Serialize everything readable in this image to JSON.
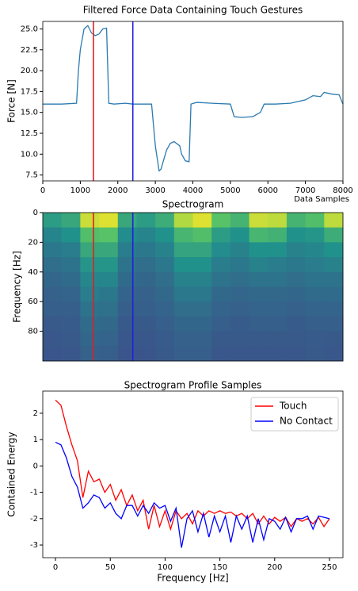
{
  "chart_data": [
    {
      "type": "line",
      "title": "Filtered Force Data Containing Touch Gestures",
      "xlabel": "Data Samples",
      "ylabel": "Force [N]",
      "x": [
        0,
        500,
        900,
        950,
        1000,
        1100,
        1200,
        1300,
        1400,
        1500,
        1600,
        1700,
        1760,
        1900,
        2200,
        2400,
        2900,
        3000,
        3100,
        3150,
        3300,
        3400,
        3500,
        3650,
        3700,
        3800,
        3900,
        3950,
        4100,
        4500,
        5000,
        5100,
        5300,
        5600,
        5800,
        5900,
        6200,
        6600,
        7000,
        7200,
        7400,
        7500,
        7700,
        7900,
        8000
      ],
      "series": [
        {
          "color": "#2a7ab0",
          "values": [
            16,
            16,
            16.1,
            20,
            22.5,
            25,
            25.4,
            24.5,
            24.2,
            24.4,
            25,
            25.1,
            16.1,
            16,
            16.1,
            16,
            16,
            11,
            8,
            8.2,
            10.5,
            11.3,
            11.5,
            11,
            10,
            9.2,
            9.1,
            16,
            16.2,
            16.1,
            16,
            14.5,
            14.4,
            14.5,
            15,
            16,
            16,
            16.1,
            16.5,
            17,
            16.9,
            17.4,
            17.2,
            17.1,
            16
          ]
        }
      ],
      "vlines": [
        {
          "x": 1350,
          "color": "#e02020"
        },
        {
          "x": 2400,
          "color": "#2020e0"
        }
      ],
      "xlim": [
        0,
        8000
      ],
      "xticks": [
        0,
        1000,
        2000,
        3000,
        4000,
        5000,
        6000,
        7000,
        8000
      ],
      "ylim": [
        6.8,
        25.9
      ],
      "yticks": [
        {
          "value": 7.5,
          "label": "7.5"
        },
        {
          "value": 10,
          "label": "10.0"
        },
        {
          "value": 12.5,
          "label": "12.5"
        },
        {
          "value": 15,
          "label": "15.0"
        },
        {
          "value": 17.5,
          "label": "17.5"
        },
        {
          "value": 20,
          "label": "20.0"
        },
        {
          "value": 22.5,
          "label": "22.5"
        },
        {
          "value": 25,
          "label": "25.0"
        }
      ]
    },
    {
      "type": "heatmap",
      "title": "Spectrogram",
      "ylabel": "Frequency [Hz]",
      "xlim": [
        0,
        8000
      ],
      "ylim": [
        0,
        100
      ],
      "yticks": [
        0,
        20,
        40,
        60,
        80
      ],
      "y_inverted": true,
      "vlines": [
        {
          "x": 1350,
          "color": "#e02020"
        },
        {
          "x": 2400,
          "color": "#2020e0"
        }
      ],
      "z": [
        [
          0.55,
          0.6,
          0.92,
          0.95,
          0.6,
          0.55,
          0.62,
          0.88,
          0.95,
          0.72,
          0.65,
          0.92,
          0.9,
          0.65,
          0.7,
          0.9
        ],
        [
          0.45,
          0.5,
          0.7,
          0.72,
          0.48,
          0.45,
          0.5,
          0.66,
          0.7,
          0.55,
          0.5,
          0.66,
          0.64,
          0.5,
          0.52,
          0.62
        ],
        [
          0.4,
          0.42,
          0.6,
          0.6,
          0.42,
          0.4,
          0.44,
          0.58,
          0.58,
          0.48,
          0.44,
          0.5,
          0.5,
          0.44,
          0.46,
          0.5
        ],
        [
          0.36,
          0.38,
          0.52,
          0.52,
          0.38,
          0.36,
          0.4,
          0.5,
          0.5,
          0.42,
          0.4,
          0.44,
          0.42,
          0.4,
          0.42,
          0.44
        ],
        [
          0.33,
          0.35,
          0.46,
          0.46,
          0.35,
          0.33,
          0.36,
          0.44,
          0.44,
          0.38,
          0.36,
          0.38,
          0.38,
          0.36,
          0.38,
          0.38
        ],
        [
          0.31,
          0.32,
          0.42,
          0.4,
          0.32,
          0.31,
          0.34,
          0.4,
          0.4,
          0.34,
          0.33,
          0.34,
          0.34,
          0.33,
          0.35,
          0.35
        ],
        [
          0.3,
          0.3,
          0.38,
          0.37,
          0.3,
          0.3,
          0.32,
          0.36,
          0.36,
          0.32,
          0.31,
          0.32,
          0.32,
          0.31,
          0.32,
          0.32
        ],
        [
          0.28,
          0.29,
          0.35,
          0.34,
          0.28,
          0.28,
          0.3,
          0.33,
          0.33,
          0.3,
          0.29,
          0.3,
          0.3,
          0.29,
          0.3,
          0.3
        ],
        [
          0.27,
          0.28,
          0.33,
          0.32,
          0.27,
          0.27,
          0.29,
          0.31,
          0.31,
          0.28,
          0.28,
          0.28,
          0.28,
          0.28,
          0.29,
          0.28
        ],
        [
          0.26,
          0.27,
          0.31,
          0.3,
          0.26,
          0.26,
          0.28,
          0.3,
          0.3,
          0.27,
          0.27,
          0.27,
          0.27,
          0.27,
          0.28,
          0.27
        ]
      ]
    },
    {
      "type": "line",
      "title": "Spectrogram Profile Samples",
      "xlabel": "Frequency [Hz]",
      "ylabel": "Contained Energy",
      "legend": "upper right",
      "x": [
        0,
        5,
        10,
        15,
        20,
        25,
        30,
        35,
        40,
        45,
        50,
        55,
        60,
        65,
        70,
        75,
        80,
        85,
        90,
        95,
        100,
        105,
        110,
        115,
        120,
        125,
        130,
        135,
        140,
        145,
        150,
        155,
        160,
        165,
        170,
        175,
        180,
        185,
        190,
        195,
        200,
        205,
        210,
        215,
        220,
        225,
        230,
        235,
        240,
        245,
        250
      ],
      "series": [
        {
          "name": "Touch",
          "color": "#ff0000",
          "values": [
            2.5,
            2.3,
            1.5,
            0.8,
            0.2,
            -1.2,
            -0.2,
            -0.6,
            -0.5,
            -1.0,
            -0.7,
            -1.3,
            -0.9,
            -1.5,
            -1.1,
            -1.7,
            -1.3,
            -2.4,
            -1.5,
            -2.3,
            -1.7,
            -2.4,
            -1.7,
            -2.0,
            -1.8,
            -2.2,
            -1.7,
            -1.9,
            -1.7,
            -1.8,
            -1.7,
            -1.8,
            -1.75,
            -1.9,
            -1.8,
            -2.0,
            -1.8,
            -2.2,
            -1.9,
            -2.2,
            -1.95,
            -2.1,
            -1.95,
            -2.3,
            -2.0,
            -2.1,
            -2.0,
            -2.2,
            -1.95,
            -2.3,
            -2.0
          ]
        },
        {
          "name": "No Contact",
          "color": "#0000ff",
          "values": [
            0.9,
            0.8,
            0.3,
            -0.4,
            -0.8,
            -1.6,
            -1.4,
            -1.1,
            -1.2,
            -1.6,
            -1.4,
            -1.8,
            -2.0,
            -1.5,
            -1.5,
            -1.9,
            -1.5,
            -1.8,
            -1.4,
            -1.6,
            -1.5,
            -2.1,
            -1.6,
            -3.1,
            -2.0,
            -1.7,
            -2.5,
            -1.8,
            -2.7,
            -1.9,
            -2.5,
            -1.9,
            -2.9,
            -1.9,
            -2.4,
            -1.9,
            -2.9,
            -2.0,
            -2.8,
            -2.0,
            -2.1,
            -2.4,
            -1.95,
            -2.5,
            -2.0,
            -2.0,
            -1.9,
            -2.4,
            -1.9,
            -1.95,
            -2.0
          ]
        }
      ],
      "xlim": [
        -11.6,
        262.3
      ],
      "xticks": [
        0,
        50,
        100,
        150,
        200,
        250
      ],
      "ylim": [
        -3.48,
        2.84
      ],
      "yticks": [
        -3,
        -2,
        -1,
        0,
        1,
        2
      ]
    }
  ]
}
